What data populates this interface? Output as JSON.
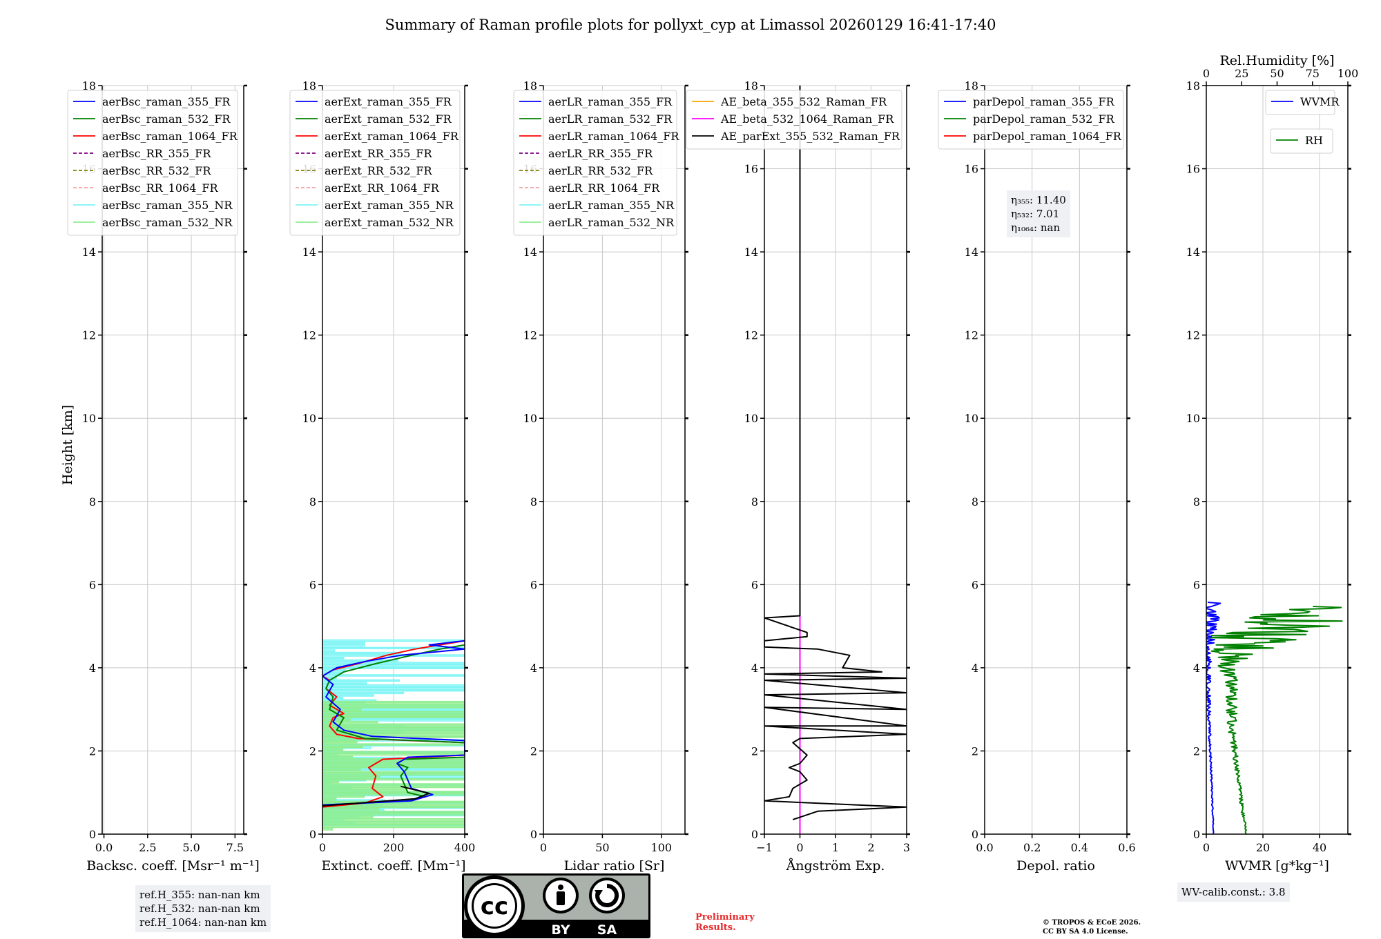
{
  "title": "Summary of Raman profile plots for pollyxt_cyp at Limassol 20260129 16:41-17:40",
  "ylabel": "Height [km]",
  "y_ticks": [
    "0",
    "2",
    "4",
    "6",
    "8",
    "10",
    "12",
    "14",
    "16",
    "18"
  ],
  "colors": {
    "blue": "#0000ff",
    "green": "#008000",
    "red": "#ff0000",
    "purple": "#800080",
    "olive": "#808000",
    "salmon": "#f4a0a0",
    "cyan": "#7ff5f5",
    "lightgreen": "#90ee90",
    "orange": "#ffa500",
    "magenta": "#ff00ff",
    "black": "#000000",
    "grid": "#c8c8c8",
    "box_bg": "#eef0f3",
    "prelim": "#e8282b"
  },
  "chart_data": [
    {
      "type": "line",
      "id": "backscatter",
      "xlabel": "Backsc. coeff. [Msr$^{-1}$ m$^{-1}$]",
      "xlabel_text": "Backsc. coeff. [Msr⁻¹ m⁻¹]",
      "xlim": [
        -0.1,
        8
      ],
      "ylim": [
        0,
        18
      ],
      "xticks": [
        0,
        2.5,
        5,
        7.5
      ],
      "xticklabels": [
        "0.0",
        "2.5",
        "5.0",
        "7.5"
      ],
      "legend": [
        {
          "label": "aerBsc_raman_355_FR",
          "color": "blue",
          "style": "solid"
        },
        {
          "label": "aerBsc_raman_532_FR",
          "color": "green",
          "style": "solid"
        },
        {
          "label": "aerBsc_raman_1064_FR",
          "color": "red",
          "style": "solid"
        },
        {
          "label": "aerBsc_RR_355_FR",
          "color": "purple",
          "style": "dashed"
        },
        {
          "label": "aerBsc_RR_532_FR",
          "color": "olive",
          "style": "dashed"
        },
        {
          "label": "aerBsc_RR_1064_FR",
          "color": "salmon",
          "style": "dashed"
        },
        {
          "label": "aerBsc_raman_355_NR",
          "color": "cyan",
          "style": "solid"
        },
        {
          "label": "aerBsc_raman_532_NR",
          "color": "lightgreen",
          "style": "solid"
        }
      ],
      "series": []
    },
    {
      "type": "line",
      "id": "extinction",
      "xlabel_text": "Extinct. coeff. [Mm⁻¹]",
      "xlim": [
        0,
        400
      ],
      "ylim": [
        0,
        18
      ],
      "xticks": [
        0,
        200,
        400
      ],
      "xticklabels": [
        "0",
        "200",
        "400"
      ],
      "legend": [
        {
          "label": "aerExt_raman_355_FR",
          "color": "blue",
          "style": "solid"
        },
        {
          "label": "aerExt_raman_532_FR",
          "color": "green",
          "style": "solid"
        },
        {
          "label": "aerExt_raman_1064_FR",
          "color": "red",
          "style": "solid"
        },
        {
          "label": "aerExt_RR_355_FR",
          "color": "purple",
          "style": "dashed"
        },
        {
          "label": "aerExt_RR_532_FR",
          "color": "olive",
          "style": "dashed"
        },
        {
          "label": "aerExt_RR_1064_FR",
          "color": "salmon",
          "style": "dashed"
        },
        {
          "label": "aerExt_raman_355_NR",
          "color": "cyan",
          "style": "solid"
        },
        {
          "label": "aerExt_raman_532_NR",
          "color": "lightgreen",
          "style": "solid"
        }
      ],
      "series": [
        {
          "name": "aerExt_raman_355_NR",
          "color": "cyan",
          "kind": "spikes",
          "seed": 3,
          "y_from": 0.2,
          "y_to": 4.65,
          "x_min": 0,
          "x_max": 400
        },
        {
          "name": "aerExt_raman_532_NR",
          "color": "lightgreen",
          "kind": "spikes",
          "seed": 7,
          "y_from": 0.1,
          "y_to": 3.2,
          "x_min": 0,
          "x_max": 400
        },
        {
          "name": "aerExt_raman_1064_FR",
          "color": "red",
          "points": [
            [
              0,
              0.65
            ],
            [
              120,
              0.75
            ],
            [
              170,
              0.9
            ],
            [
              140,
              1.1
            ],
            [
              150,
              1.4
            ],
            [
              130,
              1.6
            ],
            [
              160,
              1.75
            ],
            [
              170,
              1.8
            ],
            [
              400,
              1.9
            ],
            [
              400,
              2.2
            ],
            [
              100,
              2.3
            ],
            [
              40,
              2.4
            ],
            [
              20,
              2.6
            ],
            [
              30,
              2.8
            ],
            [
              60,
              2.9
            ],
            [
              20,
              3.1
            ],
            [
              40,
              3.3
            ],
            [
              10,
              3.5
            ],
            [
              20,
              3.7
            ],
            [
              0,
              3.8
            ],
            [
              30,
              3.95
            ],
            [
              100,
              4.1
            ],
            [
              180,
              4.3
            ],
            [
              260,
              4.45
            ],
            [
              400,
              4.65
            ]
          ]
        },
        {
          "name": "aerExt_raman_532_FR",
          "color": "green",
          "points": [
            [
              0,
              0.7
            ],
            [
              230,
              0.8
            ],
            [
              290,
              0.9
            ],
            [
              240,
              1.0
            ],
            [
              230,
              1.2
            ],
            [
              220,
              1.4
            ],
            [
              240,
              1.6
            ],
            [
              210,
              1.7
            ],
            [
              230,
              1.8
            ],
            [
              400,
              1.85
            ],
            [
              400,
              2.2
            ],
            [
              120,
              2.3
            ],
            [
              40,
              2.5
            ],
            [
              60,
              2.8
            ],
            [
              20,
              3.0
            ],
            [
              30,
              3.3
            ],
            [
              10,
              3.5
            ],
            [
              20,
              3.7
            ],
            [
              60,
              3.9
            ],
            [
              150,
              4.1
            ],
            [
              250,
              4.3
            ],
            [
              330,
              4.45
            ],
            [
              400,
              4.55
            ]
          ]
        },
        {
          "name": "aerExt_raman_355_FR",
          "color": "blue",
          "points": [
            [
              0,
              0.7
            ],
            [
              250,
              0.8
            ],
            [
              310,
              0.95
            ],
            [
              250,
              1.1
            ],
            [
              240,
              1.3
            ],
            [
              230,
              1.5
            ],
            [
              210,
              1.7
            ],
            [
              240,
              1.85
            ],
            [
              400,
              1.9
            ],
            [
              400,
              2.25
            ],
            [
              140,
              2.35
            ],
            [
              60,
              2.5
            ],
            [
              30,
              2.7
            ],
            [
              50,
              3.0
            ],
            [
              10,
              3.3
            ],
            [
              30,
              3.6
            ],
            [
              0,
              3.8
            ],
            [
              40,
              4.0
            ],
            [
              120,
              4.15
            ],
            [
              220,
              4.3
            ],
            [
              400,
              4.45
            ],
            [
              300,
              4.55
            ],
            [
              400,
              4.65
            ]
          ]
        },
        {
          "name": "aerExt_raman_532_FR_dark",
          "color": "black",
          "points": [
            [
              0,
              0.68
            ],
            [
              260,
              0.85
            ],
            [
              300,
              0.98
            ],
            [
              220,
              1.15
            ]
          ]
        }
      ]
    },
    {
      "type": "line",
      "id": "lidar_ratio",
      "xlabel_text": "Lidar ratio [Sr]",
      "xlim": [
        0,
        120
      ],
      "ylim": [
        0,
        18
      ],
      "xticks": [
        0,
        50,
        100
      ],
      "xticklabels": [
        "0",
        "50",
        "100"
      ],
      "legend": [
        {
          "label": "aerLR_raman_355_FR",
          "color": "blue",
          "style": "solid"
        },
        {
          "label": "aerLR_raman_532_FR",
          "color": "green",
          "style": "solid"
        },
        {
          "label": "aerLR_raman_1064_FR",
          "color": "red",
          "style": "solid"
        },
        {
          "label": "aerLR_RR_355_FR",
          "color": "purple",
          "style": "dashed"
        },
        {
          "label": "aerLR_RR_532_FR",
          "color": "olive",
          "style": "dashed"
        },
        {
          "label": "aerLR_RR_1064_FR",
          "color": "salmon",
          "style": "dashed"
        },
        {
          "label": "aerLR_raman_355_NR",
          "color": "cyan",
          "style": "solid"
        },
        {
          "label": "aerLR_raman_532_NR",
          "color": "lightgreen",
          "style": "solid"
        }
      ],
      "series": []
    },
    {
      "type": "line",
      "id": "angstrom",
      "xlabel_text": "Ångström Exp.",
      "xlim": [
        -1,
        3
      ],
      "ylim": [
        0,
        18
      ],
      "xticks": [
        -1,
        0,
        1,
        2,
        3
      ],
      "xticklabels": [
        "−1",
        "0",
        "1",
        "2",
        "3"
      ],
      "legend": [
        {
          "label": "AE_beta_355_532_Raman_FR",
          "color": "orange",
          "style": "solid"
        },
        {
          "label": "AE_beta_532_1064_Raman_FR",
          "color": "magenta",
          "style": "solid"
        },
        {
          "label": "AE_parExt_355_532_Raman_FR",
          "color": "black",
          "style": "solid"
        }
      ],
      "series": [
        {
          "name": "AE_beta_532_1064_Raman_FR",
          "color": "magenta",
          "points": [
            [
              0,
              0
            ],
            [
              0,
              5.25
            ]
          ]
        },
        {
          "name": "AE_parExt_355_532_Raman_FR",
          "color": "black",
          "points": [
            [
              -0.2,
              0.35
            ],
            [
              0.5,
              0.55
            ],
            [
              3,
              0.65
            ],
            [
              3,
              0.65
            ],
            [
              -1,
              0.8
            ],
            [
              -0.3,
              0.9
            ],
            [
              -0.2,
              1.1
            ],
            [
              0.2,
              1.3
            ],
            [
              0.0,
              1.5
            ],
            [
              -0.3,
              1.6
            ],
            [
              0,
              1.7
            ],
            [
              0.2,
              1.9
            ],
            [
              0,
              2.05
            ],
            [
              -0.2,
              2.2
            ],
            [
              0,
              2.3
            ],
            [
              3,
              2.4
            ],
            [
              3,
              2.4
            ],
            [
              -1,
              2.6
            ],
            [
              3,
              2.6
            ],
            [
              3,
              2.6
            ],
            [
              -1,
              3.05
            ],
            [
              3,
              3.0
            ],
            [
              3,
              3.0
            ],
            [
              -1,
              3.35
            ],
            [
              3,
              3.4
            ],
            [
              3,
              3.4
            ],
            [
              -1,
              3.7
            ],
            [
              3,
              3.75
            ],
            [
              3,
              3.75
            ],
            [
              -1,
              3.85
            ],
            [
              2.3,
              3.9
            ],
            [
              1.2,
              4.0
            ],
            [
              1.4,
              4.3
            ],
            [
              0.5,
              4.45
            ],
            [
              -1,
              4.5
            ],
            [
              -1,
              4.65
            ],
            [
              0.2,
              4.75
            ],
            [
              0.2,
              4.85
            ],
            [
              -1,
              5.2
            ],
            [
              0,
              5.25
            ],
            [
              0,
              18
            ]
          ]
        }
      ]
    },
    {
      "type": "line",
      "id": "depol",
      "xlabel_text": "Depol. ratio",
      "xlim": [
        0,
        0.6
      ],
      "ylim": [
        0,
        18
      ],
      "xticks": [
        0,
        0.2,
        0.4,
        0.6
      ],
      "xticklabels": [
        "0.0",
        "0.2",
        "0.4",
        "0.6"
      ],
      "legend": [
        {
          "label": "parDepol_raman_355_FR",
          "color": "blue",
          "style": "solid"
        },
        {
          "label": "parDepol_raman_532_FR",
          "color": "green",
          "style": "solid"
        },
        {
          "label": "parDepol_raman_1064_FR",
          "color": "red",
          "style": "solid"
        }
      ],
      "series": []
    },
    {
      "type": "line",
      "id": "wvmr",
      "xlabel_text": "WVMR [g*kg⁻¹]",
      "xlim": [
        0,
        50
      ],
      "ylim": [
        0,
        18
      ],
      "xticks": [
        0,
        20,
        40
      ],
      "xticklabels": [
        "0",
        "20",
        "40"
      ],
      "top_xlabel": "Rel.Humidity [%]",
      "top_xlim": [
        0,
        100
      ],
      "top_xticks": [
        0,
        25,
        50,
        75,
        100
      ],
      "top_xticklabels": [
        "0",
        "25",
        "50",
        "75",
        "100"
      ],
      "legend": [
        {
          "label": "WVMR",
          "color": "blue",
          "style": "solid"
        }
      ],
      "legend2": [
        {
          "label": "RH",
          "color": "green",
          "style": "solid"
        }
      ],
      "series": [
        {
          "name": "RH",
          "color": "green",
          "axis": "top",
          "kind": "noisy",
          "seed": 11,
          "profile": [
            [
              28,
              0
            ],
            [
              28,
              0.1
            ],
            [
              26,
              0.5
            ],
            [
              24,
              1.0
            ],
            [
              22,
              1.5
            ],
            [
              20,
              2.0
            ],
            [
              18,
              2.5
            ],
            [
              18,
              3.0
            ],
            [
              18,
              3.5
            ],
            [
              16,
              4.0
            ],
            [
              18,
              4.3
            ],
            [
              30,
              4.6
            ],
            [
              40,
              4.9
            ],
            [
              60,
              5.1
            ],
            [
              70,
              5.3
            ],
            [
              80,
              5.5
            ]
          ],
          "noise": [
            0.3,
            0.6,
            1.2,
            1.5,
            1.5,
            2.0,
            3.0,
            4.0,
            5.0,
            8.0,
            15.0,
            30.0,
            40.0,
            40.0,
            40.0,
            40.0
          ]
        },
        {
          "name": "WVMR",
          "color": "blue",
          "kind": "noisy",
          "seed": 19,
          "profile": [
            [
              2.5,
              0
            ],
            [
              2.3,
              0.5
            ],
            [
              2.0,
              1.0
            ],
            [
              1.7,
              1.5
            ],
            [
              1.4,
              2.0
            ],
            [
              1.1,
              2.5
            ],
            [
              0.9,
              3.0
            ],
            [
              0.7,
              3.5
            ],
            [
              0.6,
              4.0
            ],
            [
              0.6,
              4.5
            ],
            [
              0.8,
              5.0
            ],
            [
              1.0,
              5.6
            ]
          ],
          "noise": [
            0.1,
            0.2,
            0.3,
            0.3,
            0.4,
            0.5,
            0.6,
            0.8,
            1.0,
            2.0,
            4.0,
            6.0
          ]
        }
      ]
    }
  ],
  "annotations": {
    "depol_eta": [
      "η₃₅₅: 11.40",
      "η₅₃₂: 7.01",
      "η₁₀₆₄: nan"
    ],
    "ref_heights": [
      "ref.H_355: nan-nan km",
      "ref.H_532: nan-nan km",
      "ref.H_1064: nan-nan km"
    ],
    "wv_calib": "WV-calib.const.: 3.8",
    "preliminary": [
      "Preliminary",
      "Results."
    ],
    "copyright": [
      "© TROPOS & ECoE 2026.",
      "CC BY SA 4.0 License."
    ],
    "cc_logo": {
      "left": "BY",
      "right": "SA",
      "cc": "cc"
    }
  }
}
